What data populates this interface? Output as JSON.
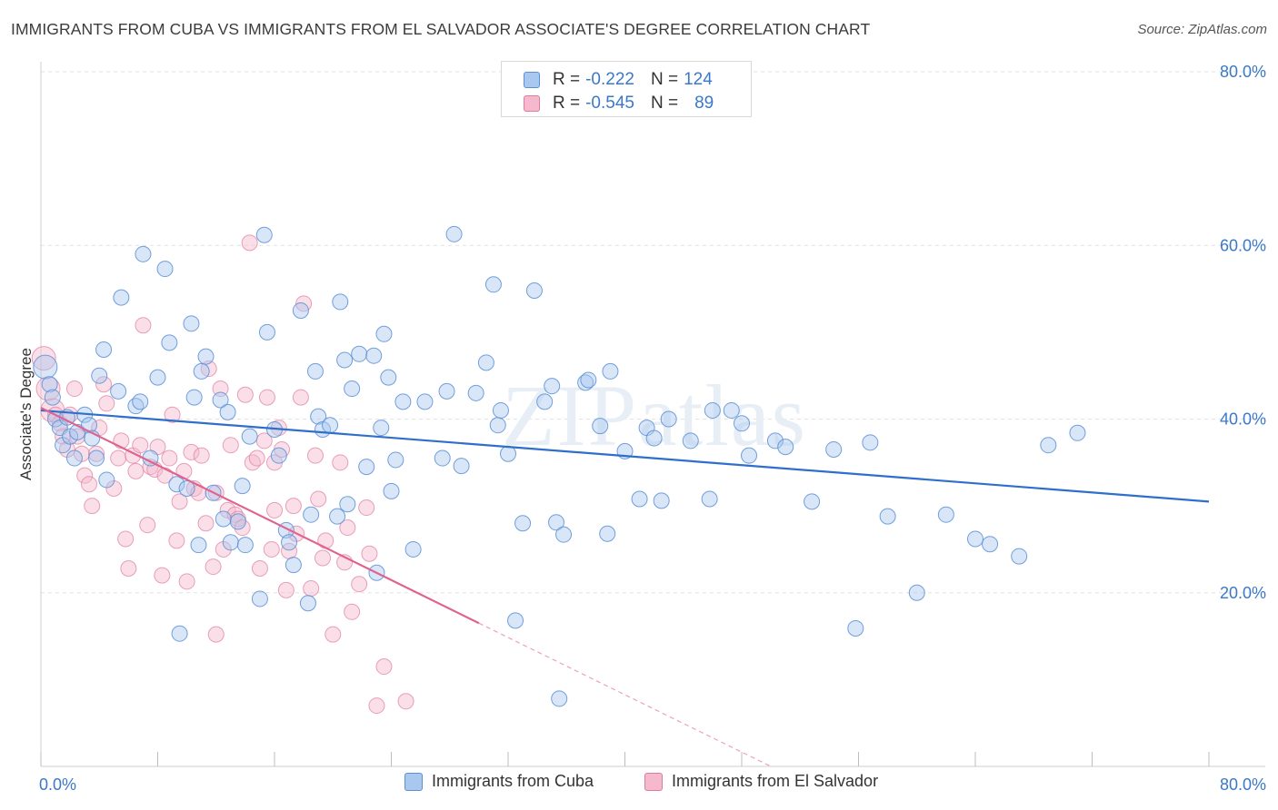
{
  "header": {
    "title": "IMMIGRANTS FROM CUBA VS IMMIGRANTS FROM EL SALVADOR ASSOCIATE'S DEGREE CORRELATION CHART",
    "source": "Source: ZipAtlas.com"
  },
  "stats": {
    "r_label": "R =",
    "n_label": "N =",
    "cuba": {
      "r": "-0.222",
      "n": "124"
    },
    "el_salvador": {
      "r": "-0.545",
      "n": "89"
    }
  },
  "legend": {
    "cuba": "Immigrants from Cuba",
    "el_salvador": "Immigrants from El Salvador"
  },
  "colors": {
    "cuba_fill": "#a9c8ef",
    "cuba_stroke": "#5b8fd6",
    "cuba_line": "#2f6fcc",
    "salv_fill": "#f5b8cc",
    "salv_stroke": "#e07aa0",
    "salv_line": "#e0628f",
    "axis_text": "#3a78c9"
  },
  "watermark": "ZIPatlas",
  "chart_data": {
    "type": "scatter",
    "title": "IMMIGRANTS FROM CUBA VS IMMIGRANTS FROM EL SALVADOR ASSOCIATE'S DEGREE CORRELATION CHART",
    "xlabel": "",
    "ylabel": "Associate's Degree",
    "xlim": [
      0,
      80
    ],
    "ylim": [
      0,
      80
    ],
    "x_tick_labels": [
      "0.0%",
      "80.0%"
    ],
    "y_tick_labels": [
      "20.0%",
      "40.0%",
      "60.0%",
      "80.0%"
    ],
    "y_ticks": [
      20,
      40,
      60,
      80
    ],
    "grid": true,
    "legend_position": "bottom",
    "series": [
      {
        "name": "Immigrants from Cuba",
        "regression": {
          "x0": 0,
          "y0": 41.0,
          "x1": 80,
          "y1": 30.5
        },
        "points": [
          [
            0.3,
            46
          ],
          [
            0.6,
            44
          ],
          [
            0.8,
            42.5
          ],
          [
            1.0,
            40
          ],
          [
            1.3,
            39
          ],
          [
            1.5,
            37
          ],
          [
            1.8,
            40.2
          ],
          [
            2.0,
            38
          ],
          [
            2.3,
            35.5
          ],
          [
            2.5,
            38.5
          ],
          [
            3.0,
            40.5
          ],
          [
            3.3,
            39.3
          ],
          [
            3.5,
            37.8
          ],
          [
            3.8,
            35.5
          ],
          [
            4.0,
            45
          ],
          [
            4.3,
            48
          ],
          [
            4.5,
            33
          ],
          [
            5.3,
            43.2
          ],
          [
            5.5,
            54
          ],
          [
            6.5,
            41.5
          ],
          [
            6.8,
            42
          ],
          [
            7.0,
            59
          ],
          [
            7.5,
            35.5
          ],
          [
            8.0,
            44.8
          ],
          [
            8.5,
            57.3
          ],
          [
            8.8,
            48.8
          ],
          [
            9.3,
            32.5
          ],
          [
            9.5,
            15.3
          ],
          [
            10.0,
            32
          ],
          [
            10.3,
            51
          ],
          [
            10.5,
            42.5
          ],
          [
            10.8,
            25.5
          ],
          [
            11.0,
            45.5
          ],
          [
            11.3,
            47.2
          ],
          [
            11.8,
            31.5
          ],
          [
            12.3,
            42.2
          ],
          [
            12.5,
            28.5
          ],
          [
            12.8,
            40.8
          ],
          [
            13.0,
            25.8
          ],
          [
            13.5,
            28.2
          ],
          [
            13.8,
            32.3
          ],
          [
            14.0,
            25.5
          ],
          [
            14.3,
            38
          ],
          [
            15.0,
            19.3
          ],
          [
            15.3,
            61.2
          ],
          [
            15.5,
            50
          ],
          [
            16.0,
            38.8
          ],
          [
            16.3,
            35.8
          ],
          [
            16.8,
            27.2
          ],
          [
            17.0,
            25.8
          ],
          [
            17.3,
            23.2
          ],
          [
            17.8,
            52.5
          ],
          [
            18.3,
            18.8
          ],
          [
            18.5,
            29
          ],
          [
            18.8,
            45.5
          ],
          [
            19.0,
            40.3
          ],
          [
            19.3,
            38.8
          ],
          [
            19.8,
            39.3
          ],
          [
            20.3,
            28.8
          ],
          [
            20.5,
            53.5
          ],
          [
            20.8,
            46.8
          ],
          [
            21.0,
            30.2
          ],
          [
            21.3,
            43.5
          ],
          [
            21.8,
            47.5
          ],
          [
            22.3,
            34.5
          ],
          [
            22.8,
            47.3
          ],
          [
            23.0,
            22.3
          ],
          [
            23.3,
            39
          ],
          [
            23.5,
            49.8
          ],
          [
            23.8,
            44.8
          ],
          [
            24.0,
            31.7
          ],
          [
            24.3,
            35.3
          ],
          [
            24.8,
            42
          ],
          [
            25.5,
            25
          ],
          [
            26.3,
            42
          ],
          [
            27.5,
            35.5
          ],
          [
            27.8,
            43.2
          ],
          [
            28.3,
            61.3
          ],
          [
            28.8,
            34.6
          ],
          [
            29.8,
            43
          ],
          [
            30.5,
            46.5
          ],
          [
            31.0,
            55.5
          ],
          [
            31.3,
            39.3
          ],
          [
            31.5,
            41
          ],
          [
            32.0,
            36
          ],
          [
            32.5,
            16.8
          ],
          [
            33.0,
            28
          ],
          [
            33.8,
            54.8
          ],
          [
            34.5,
            42
          ],
          [
            35.0,
            43.8
          ],
          [
            35.3,
            28.1
          ],
          [
            35.5,
            7.8
          ],
          [
            35.8,
            26.7
          ],
          [
            37.3,
            44.2
          ],
          [
            37.5,
            44.5
          ],
          [
            38.3,
            39.2
          ],
          [
            38.8,
            26.8
          ],
          [
            39.0,
            45.5
          ],
          [
            40.0,
            36.3
          ],
          [
            41.0,
            30.8
          ],
          [
            41.5,
            39
          ],
          [
            42.0,
            37.8
          ],
          [
            42.5,
            30.6
          ],
          [
            43.0,
            40
          ],
          [
            44.5,
            37.5
          ],
          [
            45.8,
            30.8
          ],
          [
            46.0,
            41
          ],
          [
            47.3,
            41
          ],
          [
            48.0,
            39.5
          ],
          [
            48.5,
            35.8
          ],
          [
            50.3,
            37.5
          ],
          [
            51.0,
            36.8
          ],
          [
            52.8,
            30.5
          ],
          [
            54.3,
            36.5
          ],
          [
            55.8,
            15.9
          ],
          [
            56.8,
            37.3
          ],
          [
            58.0,
            28.8
          ],
          [
            60.0,
            20
          ],
          [
            62.0,
            29
          ],
          [
            64.0,
            26.2
          ],
          [
            65.0,
            25.6
          ],
          [
            67.0,
            24.2
          ],
          [
            69.0,
            37
          ],
          [
            71.0,
            38.4
          ]
        ]
      },
      {
        "name": "Immigrants from El Salvador",
        "regression": {
          "x0": 0,
          "y0": 41.3,
          "x1": 30,
          "y1": 16.5,
          "dash_x1": 50,
          "dash_y1": 0
        },
        "points": [
          [
            0.2,
            47
          ],
          [
            0.5,
            43.5
          ],
          [
            0.8,
            41
          ],
          [
            1.0,
            40.5
          ],
          [
            1.3,
            39.5
          ],
          [
            1.5,
            38
          ],
          [
            1.8,
            36.5
          ],
          [
            2.0,
            40.5
          ],
          [
            2.3,
            43.5
          ],
          [
            2.5,
            38
          ],
          [
            2.8,
            36
          ],
          [
            3.0,
            33.5
          ],
          [
            3.3,
            32.5
          ],
          [
            3.5,
            30
          ],
          [
            3.8,
            36
          ],
          [
            4.0,
            39
          ],
          [
            4.3,
            44
          ],
          [
            4.5,
            41.8
          ],
          [
            5.0,
            32
          ],
          [
            5.3,
            35.5
          ],
          [
            5.5,
            37.5
          ],
          [
            5.8,
            26.2
          ],
          [
            6.0,
            22.8
          ],
          [
            6.3,
            35.8
          ],
          [
            6.5,
            34
          ],
          [
            6.8,
            37
          ],
          [
            7.0,
            50.8
          ],
          [
            7.3,
            27.8
          ],
          [
            7.5,
            34.5
          ],
          [
            7.8,
            34.2
          ],
          [
            8.0,
            36.8
          ],
          [
            8.3,
            22
          ],
          [
            8.5,
            33.5
          ],
          [
            8.8,
            35.5
          ],
          [
            9.0,
            40.5
          ],
          [
            9.3,
            26
          ],
          [
            9.5,
            30.5
          ],
          [
            9.8,
            34
          ],
          [
            10.0,
            21.3
          ],
          [
            10.3,
            36.2
          ],
          [
            10.5,
            32
          ],
          [
            10.8,
            31.5
          ],
          [
            11.0,
            35.8
          ],
          [
            11.3,
            28
          ],
          [
            11.5,
            45.8
          ],
          [
            11.8,
            23
          ],
          [
            12.0,
            15.2
          ],
          [
            12.3,
            43.5
          ],
          [
            12.5,
            25
          ],
          [
            12.8,
            29.5
          ],
          [
            13.0,
            37
          ],
          [
            13.3,
            29
          ],
          [
            13.5,
            28.5
          ],
          [
            13.8,
            27.5
          ],
          [
            14.0,
            42.8
          ],
          [
            14.3,
            60.3
          ],
          [
            14.5,
            35
          ],
          [
            14.8,
            35.5
          ],
          [
            15.0,
            22.8
          ],
          [
            15.3,
            37.5
          ],
          [
            15.5,
            42.5
          ],
          [
            15.8,
            25
          ],
          [
            16.0,
            35
          ],
          [
            16.3,
            39
          ],
          [
            16.5,
            36.5
          ],
          [
            16.8,
            20.3
          ],
          [
            17.0,
            24.8
          ],
          [
            17.3,
            30
          ],
          [
            17.5,
            26.8
          ],
          [
            17.8,
            42.5
          ],
          [
            18.0,
            53.3
          ],
          [
            18.5,
            20.5
          ],
          [
            18.8,
            35.8
          ],
          [
            19.0,
            30.8
          ],
          [
            19.3,
            24
          ],
          [
            19.5,
            26
          ],
          [
            20.0,
            15.2
          ],
          [
            20.5,
            35
          ],
          [
            20.8,
            23.5
          ],
          [
            21.0,
            27.5
          ],
          [
            21.3,
            17.8
          ],
          [
            21.8,
            21
          ],
          [
            22.3,
            29.8
          ],
          [
            22.5,
            24.5
          ],
          [
            23.0,
            7
          ],
          [
            23.5,
            11.5
          ],
          [
            25.0,
            7.5
          ],
          [
            16.0,
            29.5
          ],
          [
            12.0,
            31.5
          ]
        ]
      }
    ]
  }
}
